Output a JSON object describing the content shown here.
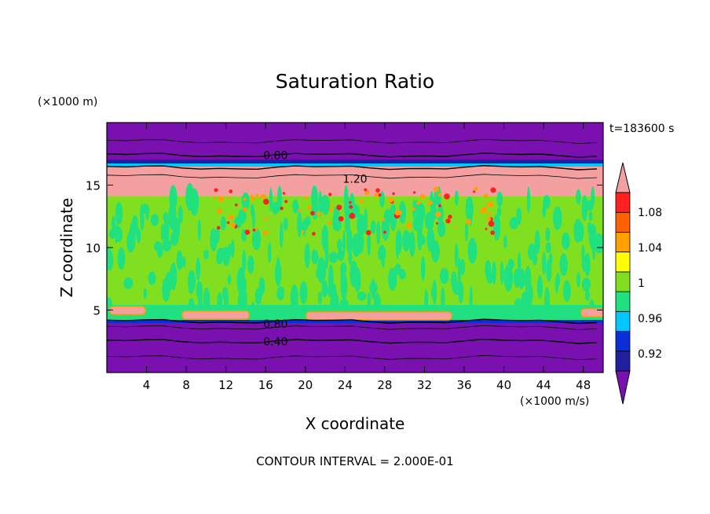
{
  "chart_data": {
    "type": "heatmap",
    "title": "Saturation Ratio",
    "xlabel": "X coordinate",
    "ylabel": "Z coordinate",
    "x_unit": "(×1000 m/s)",
    "y_unit": "(×1000 m)",
    "time_label": "t=183600 s",
    "footer": "CONTOUR INTERVAL = 2.000E-01",
    "xlim": [
      0,
      50
    ],
    "ylim": [
      0,
      20
    ],
    "x_ticks": [
      4,
      8,
      12,
      16,
      20,
      24,
      28,
      32,
      36,
      40,
      44,
      48
    ],
    "y_ticks": [
      5,
      10,
      15
    ],
    "contour_labels": [
      {
        "text": "0.80",
        "x": 17,
        "z": 17.4
      },
      {
        "text": "1.20",
        "x": 25,
        "z": 15.5
      },
      {
        "text": "0.80",
        "x": 17,
        "z": 3.9
      },
      {
        "text": "0.40",
        "x": 17,
        "z": 2.5
      }
    ],
    "colorbar": {
      "labels": [
        "1.08",
        "1.04",
        "1",
        "0.96",
        "0.92"
      ],
      "colors": [
        "#7a10b0",
        "#2020a0",
        "#0a2ed8",
        "#00c8ff",
        "#20e080",
        "#80e020",
        "#ffff00",
        "#ffa000",
        "#ff6000",
        "#ff2020",
        "#f4a0a0"
      ]
    }
  }
}
